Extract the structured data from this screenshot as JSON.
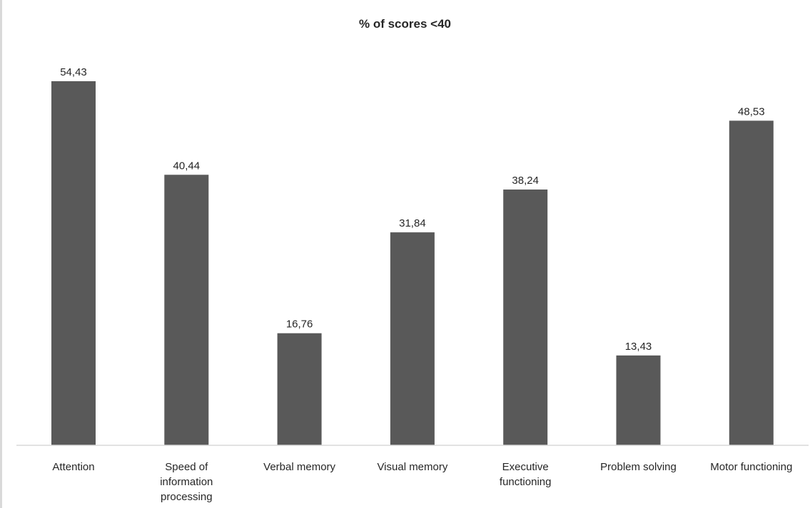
{
  "chart_data": {
    "type": "bar",
    "title": "% of scores <40",
    "xlabel": "",
    "ylabel": "",
    "categories": [
      "Attention",
      "Speed of information processing",
      "Verbal memory",
      "Visual memory",
      "Executive functioning",
      "Problem solving",
      "Motor functioning"
    ],
    "category_lines": [
      [
        "Attention"
      ],
      [
        "Speed of",
        "information",
        "processing"
      ],
      [
        "Verbal memory"
      ],
      [
        "Visual memory"
      ],
      [
        "Executive",
        "functioning"
      ],
      [
        "Problem solving"
      ],
      [
        "Motor functioning"
      ]
    ],
    "values": [
      54.43,
      40.44,
      16.76,
      31.84,
      38.24,
      13.43,
      48.53
    ],
    "value_labels": [
      "54,43",
      "40,44",
      "16,76",
      "31,84",
      "38,24",
      "13,43",
      "48,53"
    ],
    "ylim": [
      0,
      60
    ],
    "grid": false,
    "legend": "none",
    "bar_color": "#595959"
  }
}
